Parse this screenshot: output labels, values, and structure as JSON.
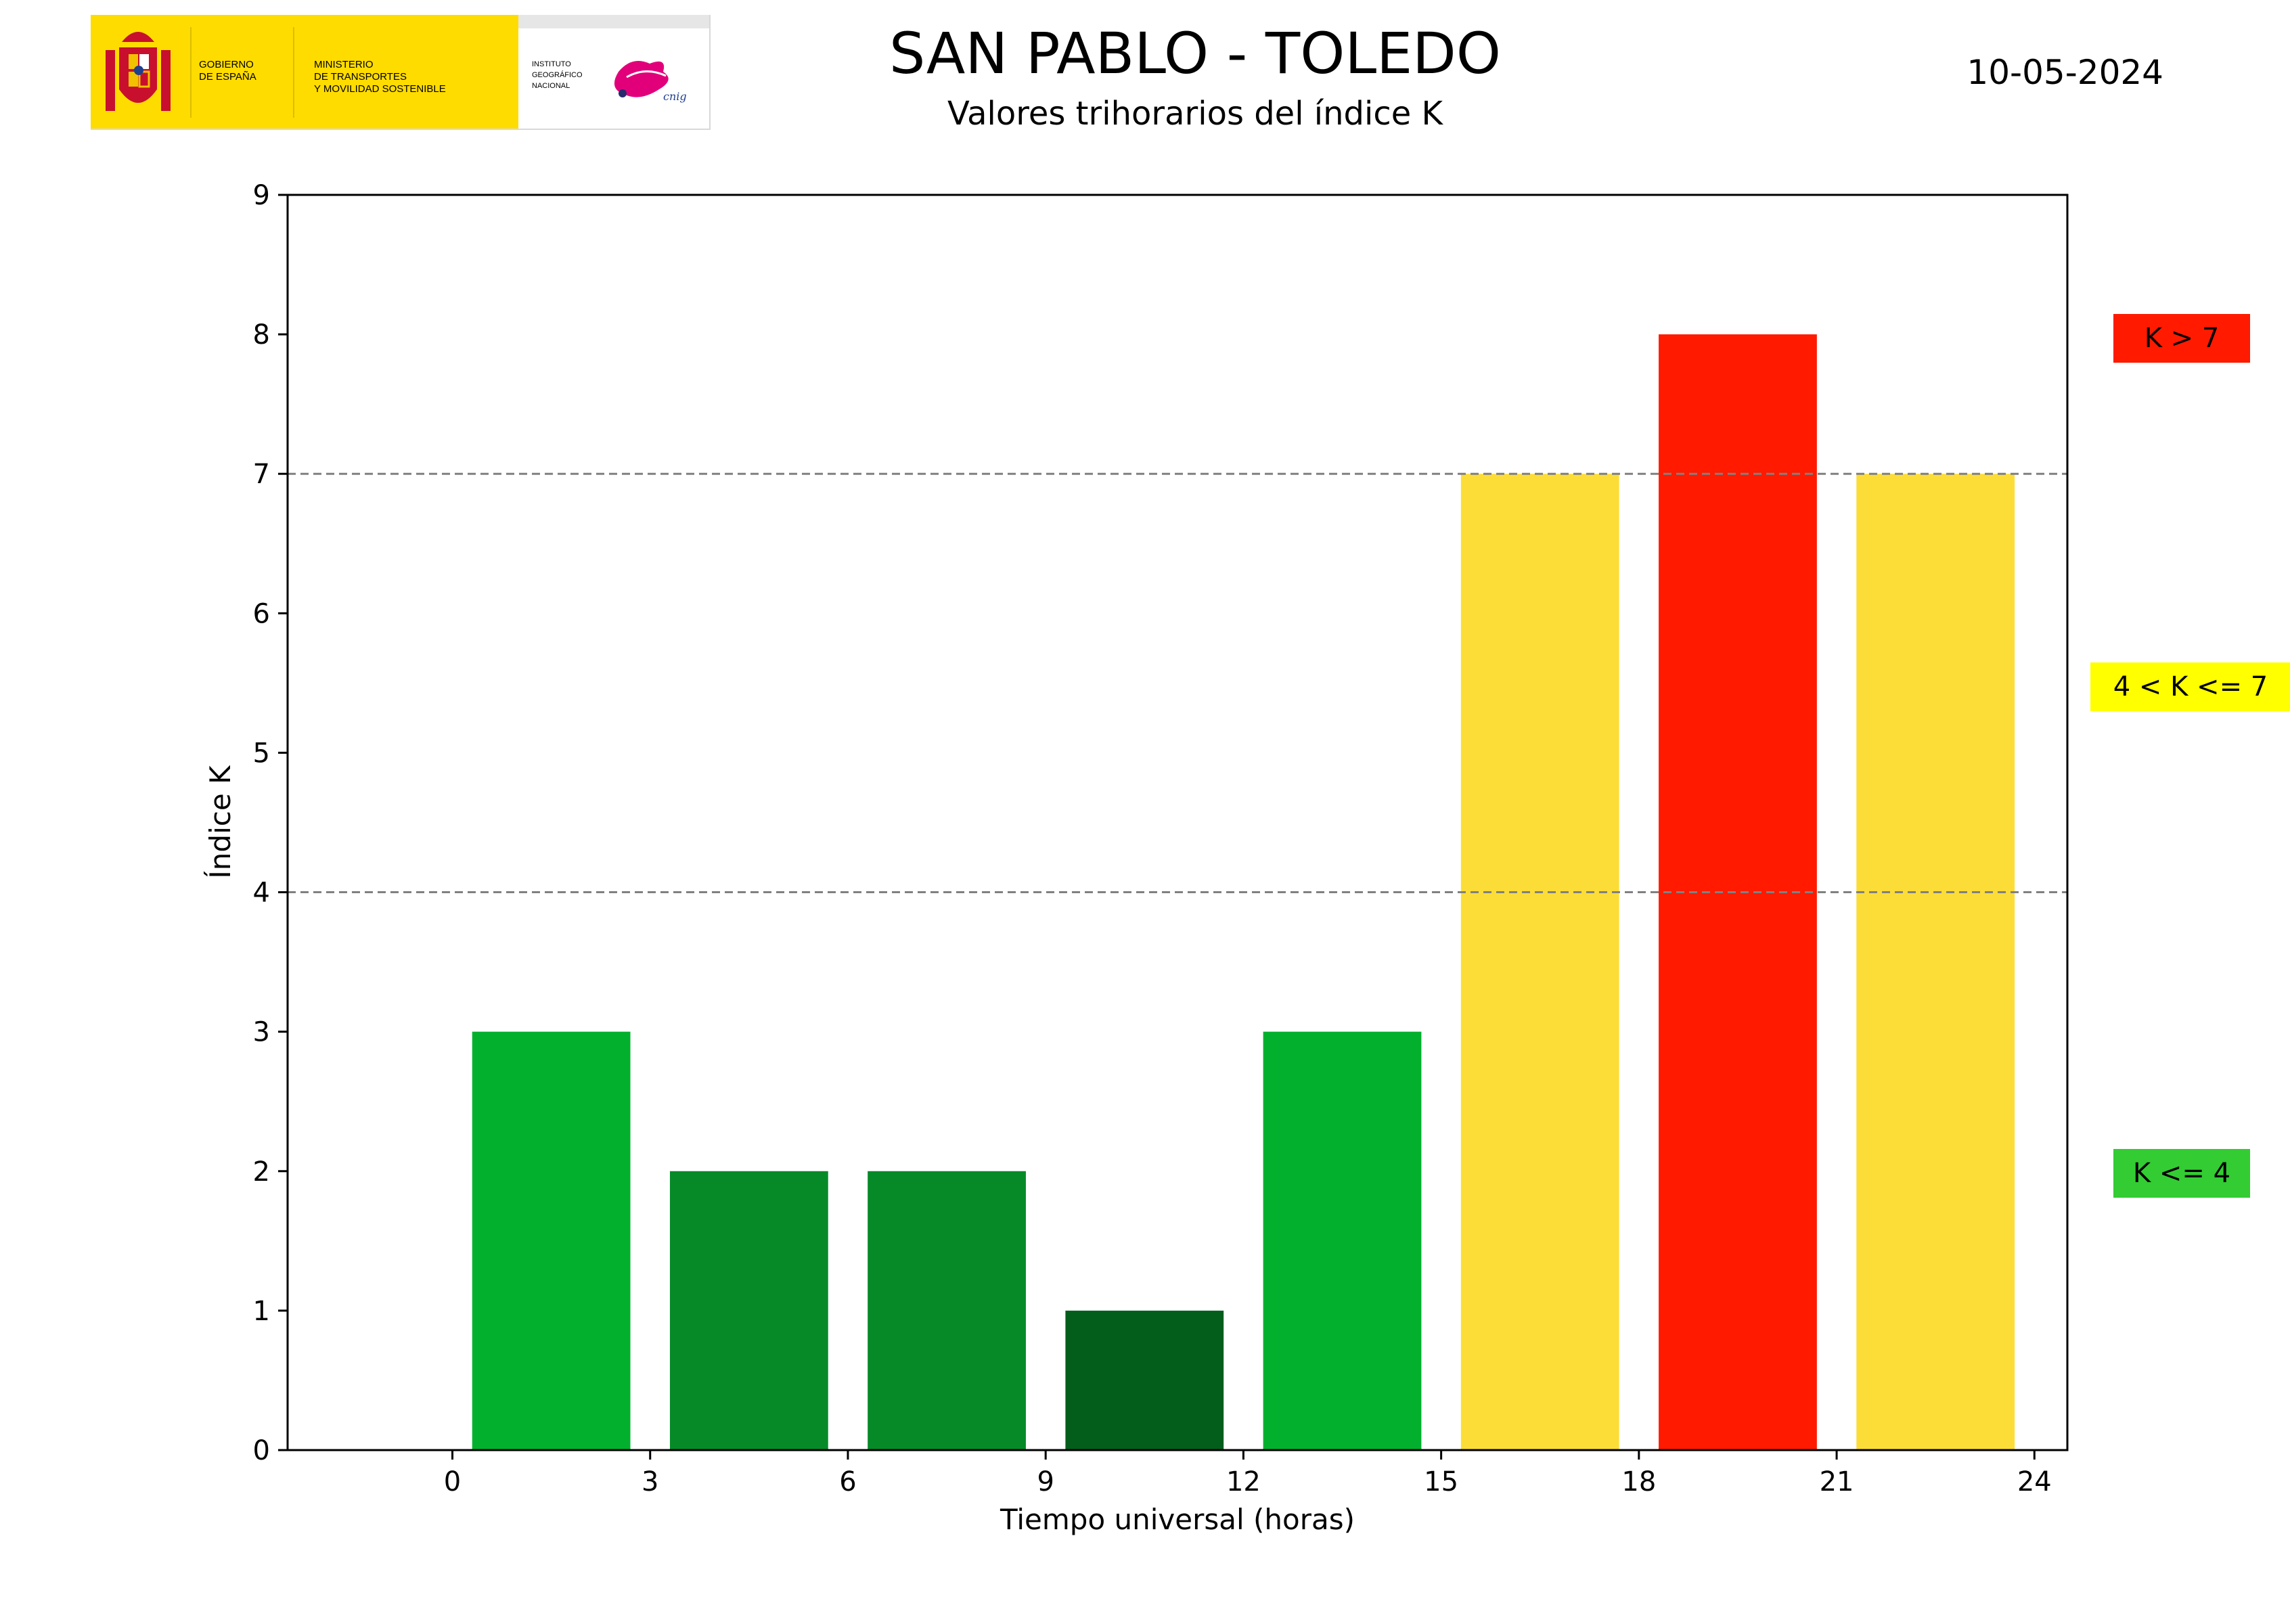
{
  "header": {
    "title": "SAN PABLO - TOLEDO",
    "subtitle": "Valores trihorarios del índice K",
    "date": "10-05-2024"
  },
  "logo": {
    "gov_line1": "GOBIERNO",
    "gov_line2": "DE ESPAÑA",
    "ministry_line1": "MINISTERIO",
    "ministry_line2": "DE TRANSPORTES",
    "ministry_line3": "Y MOVILIDAD SOSTENIBLE",
    "ign_line1": "INSTITUTO",
    "ign_line2": "GEOGRÁFICO",
    "ign_line3": "NACIONAL",
    "cnig": "cnig",
    "colors": {
      "yellow": "#ffdc00",
      "magenta": "#e2007a",
      "shield_red": "#c8102e"
    }
  },
  "legend": {
    "high": {
      "label": "K > 7",
      "color": "#ff1a00"
    },
    "mid": {
      "label": "4 < K <= 7",
      "color": "#ffff00"
    },
    "low": {
      "label": "K <= 4",
      "color": "#33cc33"
    }
  },
  "chart_data": {
    "type": "bar",
    "title": "SAN PABLO - TOLEDO",
    "subtitle": "Valores trihorarios del índice K",
    "xlabel": "Tiempo universal (horas)",
    "ylabel": "Índice K",
    "xlim": [
      -2.5,
      24.5
    ],
    "ylim": [
      0,
      9
    ],
    "xticks": [
      0,
      3,
      6,
      9,
      12,
      15,
      18,
      21,
      24
    ],
    "yticks": [
      0,
      1,
      2,
      3,
      4,
      5,
      6,
      7,
      8,
      9
    ],
    "bar_width": 2.4,
    "bars": [
      {
        "x": 1.5,
        "value": 3,
        "color": "#03b02e"
      },
      {
        "x": 4.5,
        "value": 2,
        "color": "#068a28"
      },
      {
        "x": 7.5,
        "value": 2,
        "color": "#068a28"
      },
      {
        "x": 10.5,
        "value": 1,
        "color": "#035e1c"
      },
      {
        "x": 13.5,
        "value": 3,
        "color": "#03b02e"
      },
      {
        "x": 16.5,
        "value": 7,
        "color": "#fcdd38"
      },
      {
        "x": 19.5,
        "value": 8,
        "color": "#ff1a00"
      },
      {
        "x": 22.5,
        "value": 7,
        "color": "#fcdd38"
      }
    ],
    "threshold_lines": [
      4,
      7
    ],
    "threshold_color": "#808080",
    "grid": false
  }
}
